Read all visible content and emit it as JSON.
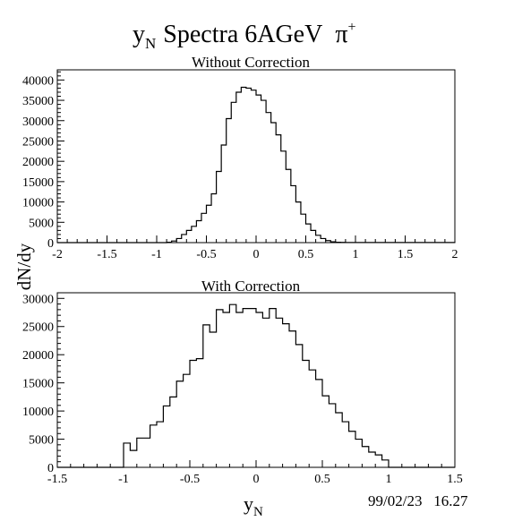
{
  "page": {
    "title": {
      "y": "y",
      "sub": "N",
      "rest": "Spectra 6AGeV",
      "pi": "π",
      "sup": "+"
    },
    "shared_ylabel": "dN/dy",
    "shared_xlabel": {
      "y": "y",
      "sub": "N"
    },
    "timestamp": "99/02/23   16.27"
  },
  "chart_data": [
    {
      "type": "histogram",
      "title": "Without Correction",
      "xlim": [
        -2,
        2
      ],
      "ylim": [
        0,
        42500
      ],
      "xticks": [
        -2,
        -1.5,
        -1,
        -0.5,
        0,
        0.5,
        1,
        1.5,
        2
      ],
      "xtick_labels": [
        "-2",
        "-1.5",
        "-1",
        "-0.5",
        "0",
        "0.5",
        "1",
        "1.5",
        "2"
      ],
      "yticks": [
        0,
        5000,
        10000,
        15000,
        20000,
        25000,
        30000,
        35000,
        40000
      ],
      "ytick_labels": [
        "0",
        "5000",
        "10000",
        "15000",
        "20000",
        "25000",
        "30000",
        "35000",
        "40000"
      ],
      "bin_width": 0.05,
      "bin_start": -2,
      "values": [
        0,
        0,
        0,
        0,
        0,
        0,
        0,
        0,
        0,
        0,
        0,
        0,
        0,
        0,
        0,
        0,
        0,
        0,
        0,
        0,
        0,
        0,
        100,
        400,
        1000,
        2000,
        3000,
        4000,
        5400,
        7200,
        9200,
        12000,
        17500,
        24000,
        30500,
        34500,
        37000,
        38200,
        38000,
        37500,
        36300,
        35000,
        32000,
        29500,
        26500,
        22500,
        18000,
        14000,
        10000,
        7000,
        4600,
        3000,
        1800,
        1000,
        500,
        200,
        100,
        50,
        30,
        20,
        20,
        20,
        20,
        20,
        20,
        20,
        20,
        20,
        20,
        20,
        20,
        20,
        20,
        20,
        20,
        20,
        20,
        20,
        20,
        20
      ]
    },
    {
      "type": "histogram",
      "title": "With Correction",
      "xlim": [
        -1.5,
        1.5
      ],
      "ylim": [
        0,
        31000
      ],
      "xticks": [
        -1.5,
        -1,
        -0.5,
        0,
        0.5,
        1,
        1.5
      ],
      "xtick_labels": [
        "-1.5",
        "-1",
        "-0.5",
        "0",
        "0.5",
        "1",
        "1.5"
      ],
      "yticks": [
        0,
        5000,
        10000,
        15000,
        20000,
        25000,
        30000
      ],
      "ytick_labels": [
        "0",
        "5000",
        "10000",
        "15000",
        "20000",
        "25000",
        "30000"
      ],
      "bin_width": 0.05,
      "bin_start": -1.5,
      "values": [
        0,
        0,
        0,
        0,
        0,
        0,
        0,
        0,
        0,
        0,
        4300,
        3000,
        5200,
        5200,
        7500,
        8100,
        10900,
        12500,
        15300,
        16500,
        19000,
        19300,
        25300,
        24000,
        28000,
        27500,
        28900,
        27500,
        28200,
        28200,
        27500,
        26500,
        28200,
        26500,
        25500,
        24200,
        21800,
        19000,
        17300,
        15600,
        12700,
        11300,
        9700,
        8100,
        6400,
        5000,
        3700,
        2700,
        2200,
        1300,
        0,
        0,
        0,
        0,
        0,
        0,
        0,
        0,
        0,
        0
      ]
    }
  ]
}
